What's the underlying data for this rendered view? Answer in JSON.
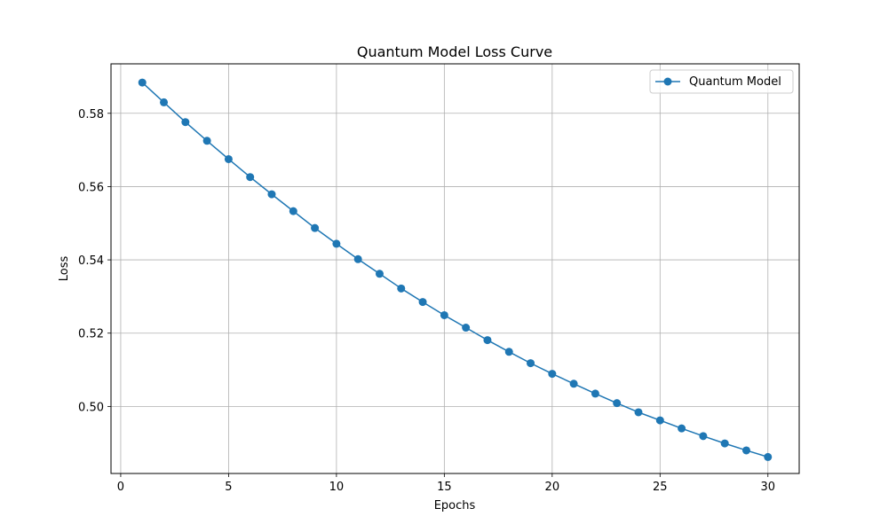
{
  "chart_data": {
    "type": "line",
    "title": "Quantum Model Loss Curve",
    "xlabel": "Epochs",
    "ylabel": "Loss",
    "xlim": [
      -0.45,
      31.45
    ],
    "ylim": [
      0.4817,
      0.5935
    ],
    "xticks": [
      0,
      5,
      10,
      15,
      20,
      25,
      30
    ],
    "yticks": [
      0.5,
      0.52,
      0.54,
      0.56,
      0.58
    ],
    "ytick_labels": [
      "0.50",
      "0.52",
      "0.54",
      "0.56",
      "0.58"
    ],
    "grid": true,
    "legend": {
      "placement": "top-right"
    },
    "series": [
      {
        "name": "Quantum Model",
        "color": "#1f77b4",
        "marker": "circle",
        "x": [
          1,
          2,
          3,
          4,
          5,
          6,
          7,
          8,
          9,
          10,
          11,
          12,
          13,
          14,
          15,
          16,
          17,
          18,
          19,
          20,
          21,
          22,
          23,
          24,
          25,
          26,
          27,
          28,
          29,
          30
        ],
        "y": [
          0.5884,
          0.583,
          0.5776,
          0.5725,
          0.5675,
          0.5626,
          0.5579,
          0.5533,
          0.5487,
          0.5444,
          0.5402,
          0.5362,
          0.5322,
          0.5285,
          0.5249,
          0.5215,
          0.5181,
          0.5149,
          0.5118,
          0.5089,
          0.5062,
          0.5035,
          0.5009,
          0.4984,
          0.4962,
          0.494,
          0.4919,
          0.4899,
          0.488,
          0.4862
        ]
      }
    ]
  }
}
